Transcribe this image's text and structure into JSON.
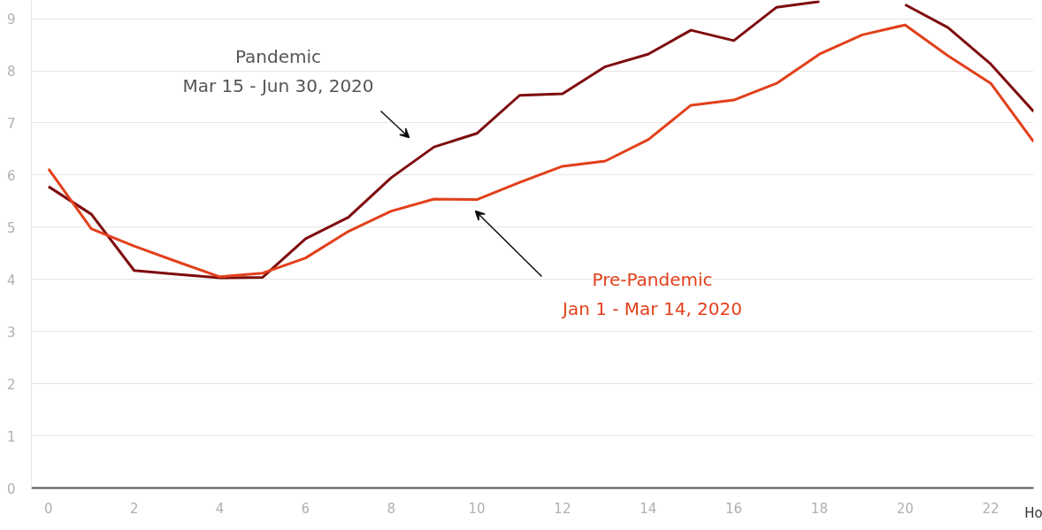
{
  "chart_data": {
    "type": "line",
    "xlabel": "Ho",
    "x": [
      0,
      1,
      2,
      3,
      4,
      5,
      6,
      7,
      8,
      9,
      10,
      11,
      12,
      13,
      14,
      15,
      16,
      17,
      18,
      19,
      20,
      21,
      22,
      23
    ],
    "series": [
      {
        "color": "#7e0c0e",
        "values": [
          5.78,
          5.25,
          4.17,
          4.1,
          4.03,
          4.04,
          4.78,
          5.19,
          5.95,
          6.54,
          6.8,
          7.53,
          7.56,
          8.08,
          8.32,
          8.78,
          8.58,
          9.22,
          9.33,
          null,
          9.27,
          8.83,
          8.13,
          7.22
        ]
      },
      {
        "color": "#e2401b",
        "values": [
          6.12,
          4.97,
          4.64,
          4.34,
          4.05,
          4.12,
          4.41,
          4.92,
          5.31,
          5.54,
          5.53,
          5.86,
          6.17,
          6.27,
          6.68,
          7.34,
          7.44,
          7.76,
          8.32,
          8.69,
          8.88,
          8.29,
          7.76,
          6.64
        ]
      }
    ],
    "xlim": [
      -0.4,
      23.0
    ],
    "ylim": [
      0,
      9.35
    ],
    "xticks": [
      0,
      2,
      4,
      6,
      8,
      10,
      12,
      14,
      16,
      18,
      20,
      22
    ],
    "yticks": [
      0,
      1,
      2,
      3,
      4,
      5,
      6,
      7,
      8,
      9
    ],
    "grid": "y",
    "marker": "none",
    "line_style": "solid",
    "annotations": [
      "Pandemic\nMar 15 - Jun 30, 2020",
      "Pre-Pandemic\nJan 1 - Mar 14, 2020"
    ]
  }
}
